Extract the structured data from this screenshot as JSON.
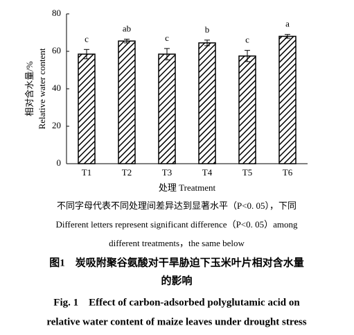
{
  "chart_data": {
    "type": "bar",
    "y_label": [
      "相对含水量/%",
      "Relative water content"
    ],
    "x_label": "处理 Treatment",
    "categories": [
      "T1",
      "T2",
      "T3",
      "T4",
      "T5",
      "T6"
    ],
    "values": [
      58.5,
      65.5,
      58.5,
      64.5,
      57.5,
      68
    ],
    "errors": [
      2.5,
      1,
      3,
      1.5,
      3,
      1
    ],
    "significance": [
      "c",
      "ab",
      "c",
      "b",
      "c",
      "a"
    ],
    "color": "#000000",
    "ylim": [
      0,
      80
    ],
    "yticks": [
      0,
      20,
      40,
      60,
      80
    ],
    "notes": [
      "不同字母代表不同处理间差异达到显著水平（P<0. 05），下同",
      "Different letters represent significant difference（P<0. 05）among",
      "different treatments，the same below"
    ],
    "caption_cn": [
      "图1　炭吸附聚谷氨酸对干旱胁迫下玉米叶片相对含水量",
      "的影响"
    ],
    "caption_en": [
      "Fig. 1　Effect of carbon-adsorbed polyglutamic acid on",
      "relative water content of maize leaves under drought stress"
    ]
  }
}
